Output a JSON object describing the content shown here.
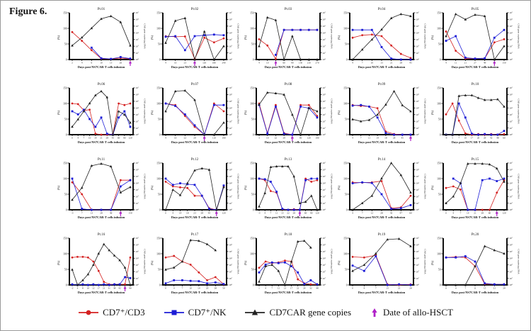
{
  "figure_label": "Figure 6.",
  "colors": {
    "cd3": "#d42121",
    "nk": "#1c1cd6",
    "car": "#222222",
    "hsct": "#b021c8",
    "axis": "#111111"
  },
  "legend": {
    "items": [
      {
        "label": "CD7⁺/CD3",
        "marker": "circle",
        "color": "#d42121"
      },
      {
        "label": "CD7⁺/NK",
        "marker": "square",
        "color": "#1c1cd6"
      },
      {
        "label": "CD7CAR gene copies",
        "marker": "triangle",
        "color": "#222222"
      },
      {
        "label": "Date of allo-HSCT",
        "marker": "arrow",
        "color": "#b021c8"
      }
    ]
  },
  "axes": {
    "left_label": "(%)",
    "right_label": "CAR gene copies/μg DNA",
    "x_label": "Days post NS7CAR-T cells infusion",
    "left_ticks": [
      0,
      50,
      100,
      150
    ],
    "left_max": 150,
    "right_tick_exponents": [
      0,
      1,
      2,
      3,
      4,
      5,
      6,
      7
    ],
    "right_max_exponent": 7
  },
  "chart_data": {
    "type": "line",
    "note": "20 small-multiple patient panels; cd3/nk are % (left axis 0-150), car_log10 are log10 CAR gene copies/μg DNA (right axis 10^0-10^7); allo_hsct_index marks the x-tick with the magenta arrow",
    "plots": [
      {
        "title": "Pt.01",
        "x_ticks": [
          "2",
          "4",
          "6",
          "10",
          "13",
          "26",
          "45"
        ],
        "allo_hsct_index": 6,
        "cd3": [
          88,
          60,
          30,
          3,
          2,
          5,
          2
        ],
        "nk": [
          null,
          null,
          38,
          4,
          2,
          8,
          3
        ],
        "car_log10": [
          2.1,
          3.3,
          4.7,
          6.1,
          6.5,
          5.6,
          2.1
        ]
      },
      {
        "title": "Pt.02",
        "x_ticks": [
          "4",
          "10",
          "23",
          "60",
          "120",
          "180",
          "240"
        ],
        "allo_hsct_index": 3,
        "cd3": [
          75,
          73,
          74,
          2,
          70,
          55,
          68
        ],
        "nk": [
          73,
          75,
          30,
          75,
          78,
          80,
          78
        ],
        "car_log10": [
          2.5,
          5.8,
          6.2,
          0,
          4.2,
          0,
          2.0
        ]
      },
      {
        "title": "Pt.03",
        "x_ticks": [
          "4",
          "10",
          "28",
          "60",
          "90",
          "150",
          "210",
          "270"
        ],
        "allo_hsct_index": 2,
        "cd3": [
          65,
          45,
          2,
          95,
          95,
          95,
          95,
          95
        ],
        "nk": [
          null,
          null,
          15,
          95,
          95,
          95,
          95,
          95
        ],
        "car_log10": [
          2.0,
          6.3,
          5.9,
          0,
          3.5,
          0,
          0,
          0
        ]
      },
      {
        "title": "Pt.04",
        "x_ticks": [
          "4",
          "7",
          "10",
          "13",
          "21",
          "28",
          "45"
        ],
        "allo_hsct_index": null,
        "cd3": [
          70,
          78,
          80,
          75,
          45,
          18,
          5
        ],
        "nk": [
          95,
          95,
          95,
          40,
          3,
          0,
          0
        ],
        "car_log10": [
          0,
          1.5,
          3.0,
          4.5,
          6.2,
          6.8,
          6.5
        ]
      },
      {
        "title": "Pt.05",
        "x_ticks": [
          "4",
          "11",
          "21",
          "27",
          "49",
          "90",
          "150"
        ],
        "allo_hsct_index": 5,
        "cd3": [
          90,
          28,
          3,
          3,
          4,
          55,
          65
        ],
        "nk": [
          60,
          75,
          6,
          3,
          4,
          70,
          95
        ],
        "car_log10": [
          3.5,
          6.8,
          6.0,
          6.7,
          6.5,
          0,
          2.0
        ]
      },
      {
        "title": "Pt.06",
        "x_ticks": [
          "0",
          "4",
          "7",
          "10",
          "14",
          "21",
          "28",
          "45",
          "60",
          "90",
          "120"
        ],
        "allo_hsct_index": null,
        "cd3": [
          100,
          98,
          78,
          80,
          3,
          0,
          0,
          2,
          100,
          95,
          100
        ],
        "nk": [
          75,
          65,
          80,
          50,
          25,
          55,
          3,
          0,
          55,
          75,
          25
        ],
        "car_log10": [
          1.2,
          2.3,
          3.5,
          4.7,
          5.9,
          6.5,
          5.6,
          0,
          3.5,
          3.0,
          1.8
        ]
      },
      {
        "title": "Pt.07",
        "x_ticks": [
          "4",
          "10",
          "22",
          "29",
          "60",
          "110",
          "190"
        ],
        "allo_hsct_index": 4,
        "cd3": [
          100,
          95,
          60,
          25,
          0,
          100,
          75
        ],
        "nk": [
          100,
          92,
          65,
          30,
          0,
          95,
          95
        ],
        "car_log10": [
          3.5,
          6.5,
          6.6,
          5.2,
          0,
          0,
          1.8
        ]
      },
      {
        "title": "Pt.08",
        "x_ticks": [
          "3",
          "10",
          "22",
          "29",
          "60",
          "90",
          "120",
          "190"
        ],
        "allo_hsct_index": 4,
        "cd3": [
          100,
          5,
          95,
          5,
          0,
          95,
          95,
          60
        ],
        "nk": [
          95,
          3,
          90,
          3,
          0,
          90,
          85,
          55
        ],
        "car_log10": [
          4.5,
          6.3,
          6.2,
          6.0,
          3.0,
          0,
          4.0,
          3.5
        ]
      },
      {
        "title": "Pt.09",
        "x_ticks": [
          "4",
          "7",
          "11",
          "14",
          "18",
          "28",
          "45",
          "60"
        ],
        "allo_hsct_index": 7,
        "cd3": [
          95,
          92,
          90,
          85,
          10,
          2,
          0,
          0
        ],
        "nk": [
          93,
          95,
          90,
          55,
          5,
          0,
          0,
          0
        ],
        "car_log10": [
          2.3,
          2.0,
          2.2,
          3.0,
          4.5,
          6.5,
          4.4,
          3.5
        ]
      },
      {
        "title": "Pt.10",
        "x_ticks": [
          "-4",
          "5",
          "7",
          "10",
          "17",
          "20",
          "29",
          "42",
          "48",
          "60"
        ],
        "allo_hsct_index": null,
        "cd3": [
          65,
          100,
          45,
          4,
          0,
          2,
          0,
          2,
          0,
          2
        ],
        "nk": [
          0,
          0,
          100,
          55,
          3,
          0,
          2,
          0,
          0,
          12
        ],
        "car_log10": [
          0,
          0,
          5.8,
          5.9,
          5.9,
          5.5,
          5.2,
          5.2,
          5.3,
          4.2
        ]
      },
      {
        "title": "Pt.11",
        "x_ticks": [
          "-3",
          "7",
          "13",
          "28",
          "46",
          "90",
          "150"
        ],
        "allo_hsct_index": 5,
        "cd3": [
          88,
          50,
          0,
          0,
          0,
          95,
          95
        ],
        "nk": [
          100,
          3,
          0,
          0,
          0,
          75,
          95
        ],
        "car_log10": [
          1.5,
          3.3,
          6.6,
          6.9,
          6.5,
          2.6,
          3.4
        ]
      },
      {
        "title": "Pt.12",
        "x_ticks": [
          "0",
          "4",
          "14",
          "18",
          "23",
          "28",
          "45",
          "90",
          "120"
        ],
        "allo_hsct_index": 7,
        "cd3": [
          90,
          75,
          72,
          70,
          45,
          45,
          5,
          0,
          75
        ],
        "nk": [
          100,
          80,
          85,
          82,
          80,
          45,
          3,
          0,
          78
        ],
        "car_log10": [
          0,
          3.0,
          2.2,
          4.0,
          5.9,
          6.2,
          6.0,
          0,
          3.4
        ]
      },
      {
        "title": "Pt.13",
        "x_ticks": [
          "-3",
          "4",
          "7",
          "11",
          "13",
          "22",
          "28",
          "45",
          "60",
          "90",
          "120"
        ],
        "allo_hsct_index": 7,
        "cd3": [
          100,
          95,
          60,
          55,
          2,
          0,
          2,
          0,
          100,
          90,
          95
        ],
        "nk": [
          100,
          98,
          90,
          58,
          3,
          0,
          0,
          0,
          95,
          100,
          100
        ],
        "car_log10": [
          0.5,
          2.5,
          6.4,
          6.5,
          6.5,
          6.5,
          5.0,
          1.0,
          1.2,
          2.1,
          0
        ]
      },
      {
        "title": "Pt.14",
        "x_ticks": [
          "4",
          "7",
          "12",
          "28",
          "42",
          "47",
          "60"
        ],
        "allo_hsct_index": null,
        "cd3": [
          88,
          87,
          88,
          92,
          5,
          8,
          45
        ],
        "nk": [
          85,
          88,
          86,
          50,
          3,
          5,
          15
        ],
        "car_log10": [
          0,
          1.0,
          2.1,
          4.7,
          7.0,
          5.2,
          2.6
        ]
      },
      {
        "title": "Pt.15",
        "x_ticks": [
          "0",
          "4",
          "7",
          "14",
          "21",
          "28",
          "60",
          "90",
          "120"
        ],
        "allo_hsct_index": 7,
        "cd3": [
          70,
          75,
          65,
          0,
          0,
          0,
          0,
          55,
          95
        ],
        "nk": [
          null,
          100,
          85,
          0,
          0,
          95,
          100,
          92,
          100
        ],
        "car_log10": [
          1.0,
          2.0,
          4.0,
          6.9,
          6.9,
          6.9,
          6.8,
          6.2,
          4.2
        ]
      },
      {
        "title": "Pt.16",
        "x_ticks": [
          "-2",
          "4",
          "8",
          "10",
          "12",
          "17",
          "21",
          "31",
          "38",
          "42",
          "60",
          "90"
        ],
        "allo_hsct_index": 10,
        "cd3": [
          88,
          90,
          90,
          88,
          75,
          45,
          10,
          2,
          2,
          2,
          2,
          88
        ],
        "nk": [
          2,
          0,
          2,
          0,
          2,
          0,
          2,
          0,
          2,
          2,
          25,
          22
        ],
        "car_log10": [
          2.3,
          0,
          0.7,
          1.6,
          3.0,
          4.7,
          6.1,
          5.2,
          4.4,
          3.7,
          2.6,
          0
        ]
      },
      {
        "title": "Pt.17",
        "x_ticks": [
          "0",
          "4",
          "7",
          "10",
          "14",
          "20",
          "28",
          "50"
        ],
        "allo_hsct_index": null,
        "cd3": [
          88,
          93,
          75,
          65,
          40,
          15,
          25,
          2
        ],
        "nk": [
          5,
          15,
          15,
          13,
          12,
          5,
          8,
          3
        ],
        "car_log10": [
          2.3,
          2.6,
          3.5,
          6.7,
          6.6,
          6.1,
          5.2,
          null
        ]
      },
      {
        "title": "Pt.18",
        "x_ticks": [
          "1",
          "4",
          "7",
          "11",
          "13",
          "17",
          "21",
          "24",
          "32",
          "48"
        ],
        "allo_hsct_index": null,
        "cd3": [
          55,
          75,
          70,
          72,
          78,
          75,
          18,
          5,
          2,
          2
        ],
        "nk": [
          40,
          65,
          72,
          70,
          72,
          60,
          40,
          3,
          15,
          2
        ],
        "car_log10": [
          0.5,
          2.8,
          3.0,
          2.1,
          0,
          3.5,
          6.5,
          6.6,
          5.6,
          null
        ]
      },
      {
        "title": "Pt.19",
        "x_ticks": [
          "0",
          "4",
          "7",
          "15",
          "22",
          "28"
        ],
        "allo_hsct_index": null,
        "cd3": [
          90,
          88,
          95,
          2,
          0,
          2
        ],
        "nk": [
          62,
          45,
          92,
          0,
          2,
          0
        ],
        "car_log10": [
          2.1,
          3.0,
          4.7,
          6.8,
          6.9,
          5.8
        ]
      },
      {
        "title": "Pt.20",
        "x_ticks": [
          "0",
          "4",
          "7",
          "11",
          "15",
          "21",
          "29"
        ],
        "allo_hsct_index": null,
        "cd3": [
          88,
          90,
          88,
          60,
          3,
          2,
          2
        ],
        "nk": [
          88,
          88,
          92,
          75,
          5,
          2,
          2
        ],
        "car_log10": [
          0,
          0,
          0,
          2.8,
          5.8,
          5.2,
          4.7
        ]
      }
    ]
  }
}
